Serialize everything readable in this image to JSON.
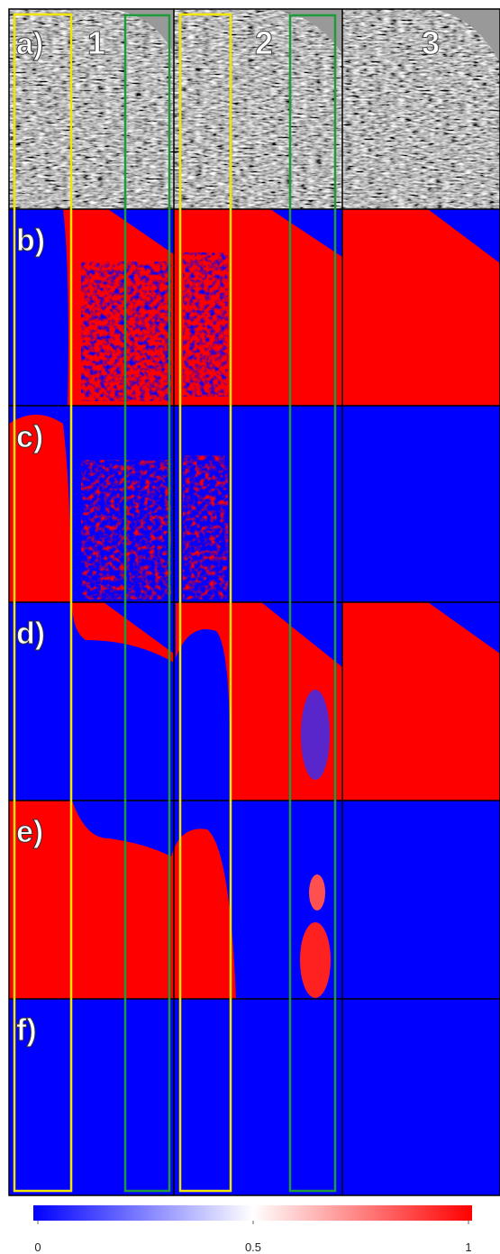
{
  "panels": [
    {
      "label": "a)"
    },
    {
      "label": "b)"
    },
    {
      "label": "c)"
    },
    {
      "label": "d)"
    },
    {
      "label": "e)"
    },
    {
      "label": "f)"
    }
  ],
  "columns": [
    "1",
    "2",
    "3"
  ],
  "colorbar": {
    "min": 0,
    "max": 1,
    "ticks": [
      0,
      0.5,
      1
    ]
  }
}
